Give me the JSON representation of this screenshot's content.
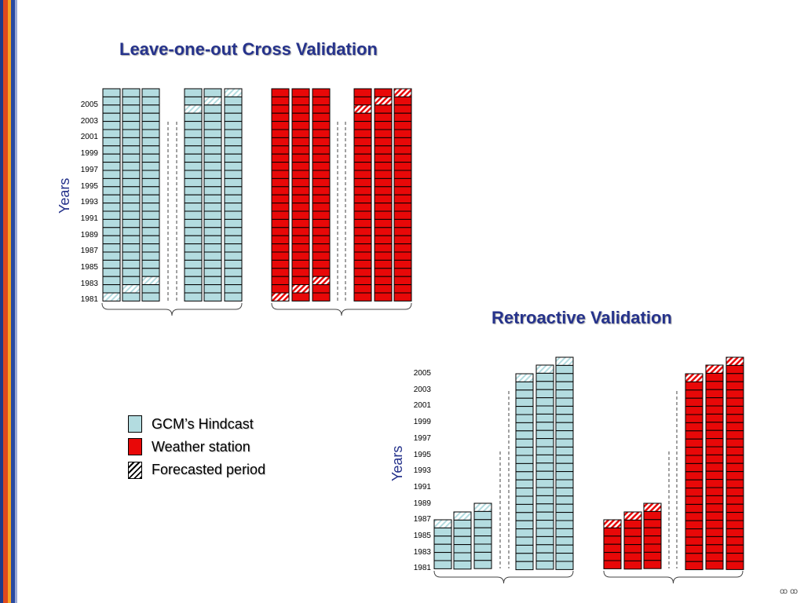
{
  "colors": {
    "hindcast": "#b3dce0",
    "station": "#e80808",
    "title": "#26338c"
  },
  "loo": {
    "title": "Leave-one-out Cross Validation",
    "axis_label": "Years",
    "year_labels": [
      "2005",
      "2003",
      "2001",
      "1999",
      "1997",
      "1995",
      "1993",
      "1991",
      "1989",
      "1987",
      "1985",
      "1983",
      "1981"
    ]
  },
  "retro": {
    "title": "Retroactive Validation",
    "axis_label": "Years",
    "year_labels": [
      "2005",
      "2003",
      "2001",
      "1999",
      "1997",
      "1995",
      "1993",
      "1991",
      "1989",
      "1987",
      "1985",
      "1983",
      "1981"
    ]
  },
  "legend": {
    "items": [
      {
        "label": "GCM’s Hindcast"
      },
      {
        "label": "Weather station"
      },
      {
        "label": "Forecasted period"
      }
    ]
  },
  "nav": {
    "label": "ꝏ ꝏ"
  }
}
